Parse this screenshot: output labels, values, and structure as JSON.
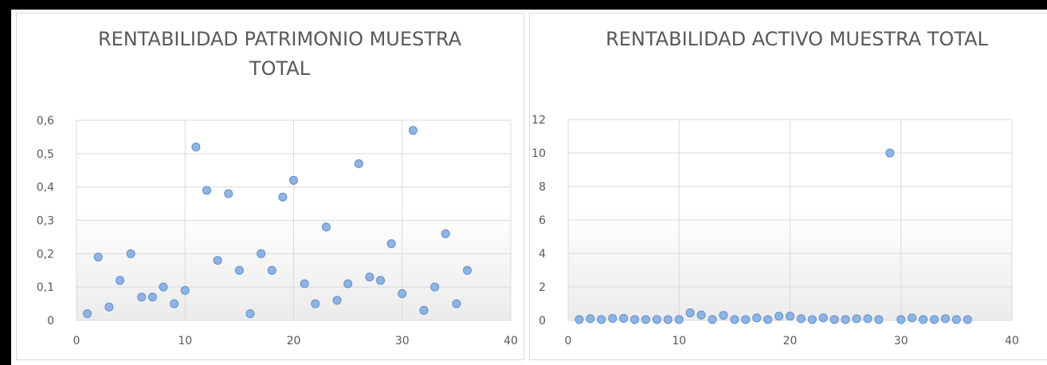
{
  "chart_data": [
    {
      "type": "scatter",
      "title": "RENTABILIDAD PATRIMONIO MUESTRA TOTAL",
      "xlabel": "",
      "ylabel": "",
      "xlim": [
        0,
        40
      ],
      "ylim": [
        0,
        0.6
      ],
      "x_ticks": [
        "0",
        "10",
        "20",
        "30",
        "40"
      ],
      "y_ticks": [
        "0",
        "0,1",
        "0,2",
        "0,3",
        "0,4",
        "0,5",
        "0,6"
      ],
      "grid": true,
      "legend": "none",
      "marker_color": "#8fb4e3",
      "marker_edge": "#5b8fd0",
      "x": [
        1,
        2,
        3,
        4,
        5,
        6,
        7,
        8,
        9,
        10,
        11,
        12,
        13,
        14,
        15,
        16,
        17,
        18,
        19,
        20,
        21,
        22,
        23,
        24,
        25,
        26,
        27,
        28,
        29,
        30,
        31,
        32,
        33,
        34,
        35,
        36
      ],
      "y": [
        0.02,
        0.19,
        0.04,
        0.12,
        0.2,
        0.07,
        0.07,
        0.1,
        0.05,
        0.09,
        0.52,
        0.39,
        0.18,
        0.38,
        0.15,
        0.02,
        0.2,
        0.15,
        0.37,
        0.42,
        0.11,
        0.05,
        0.28,
        0.06,
        0.11,
        0.47,
        0.13,
        0.12,
        0.23,
        0.08,
        0.57,
        0.03,
        0.1,
        0.26,
        0.05,
        0.15
      ]
    },
    {
      "type": "scatter",
      "title": "RENTABILIDAD ACTIVO MUESTRA TOTAL",
      "xlabel": "",
      "ylabel": "",
      "xlim": [
        0,
        40
      ],
      "ylim": [
        0,
        12
      ],
      "x_ticks": [
        "0",
        "10",
        "20",
        "30",
        "40"
      ],
      "y_ticks": [
        "0",
        "2",
        "4",
        "6",
        "8",
        "10",
        "12"
      ],
      "grid": true,
      "legend": "none",
      "marker_color": "#8fb4e3",
      "marker_edge": "#5b8fd0",
      "x": [
        1,
        2,
        3,
        4,
        5,
        6,
        7,
        8,
        9,
        10,
        11,
        12,
        13,
        14,
        15,
        16,
        17,
        18,
        19,
        20,
        21,
        22,
        23,
        24,
        25,
        26,
        27,
        28,
        29,
        30,
        31,
        32,
        33,
        34,
        35,
        36
      ],
      "y": [
        0.05,
        0.1,
        0.05,
        0.12,
        0.12,
        0.05,
        0.05,
        0.05,
        0.05,
        0.05,
        0.45,
        0.32,
        0.05,
        0.3,
        0.05,
        0.05,
        0.15,
        0.05,
        0.25,
        0.25,
        0.1,
        0.05,
        0.15,
        0.05,
        0.05,
        0.1,
        0.1,
        0.05,
        10.0,
        0.05,
        0.15,
        0.05,
        0.05,
        0.1,
        0.05,
        0.05
      ]
    }
  ]
}
